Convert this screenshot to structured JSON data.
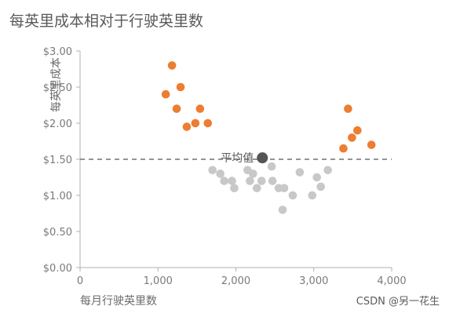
{
  "chart_data": {
    "type": "scatter",
    "title": "每英里成本相对于行驶英里数",
    "xlabel": "每月行驶英里数",
    "ylabel": "每英里成本",
    "xlim": [
      0,
      4000
    ],
    "ylim": [
      0,
      3
    ],
    "xticks": [
      0,
      1000,
      2000,
      3000,
      4000
    ],
    "xtick_labels": [
      "0",
      "1,000",
      "2,000",
      "3,000",
      "4,000"
    ],
    "yticks": [
      0,
      0.5,
      1,
      1.5,
      2,
      2.5,
      3
    ],
    "ytick_labels": [
      "$0.00",
      "$0.50",
      "$1.00",
      "$1.50",
      "$2.00",
      "$2.50",
      "$3.00"
    ],
    "grid": false,
    "average": {
      "x": 2340,
      "y": 1.52,
      "label": "平均值",
      "line_y": 1.5,
      "color": "#555555"
    },
    "series": [
      {
        "color": "#ed7d31",
        "points": [
          [
            1100,
            2.4
          ],
          [
            1180,
            2.8
          ],
          [
            1240,
            2.2
          ],
          [
            1290,
            2.5
          ],
          [
            1370,
            1.95
          ],
          [
            1480,
            2.0
          ],
          [
            1540,
            2.2
          ],
          [
            1640,
            2.0
          ],
          [
            3380,
            1.65
          ],
          [
            3440,
            2.2
          ],
          [
            3490,
            1.8
          ],
          [
            3560,
            1.9
          ],
          [
            3740,
            1.7
          ]
        ]
      },
      {
        "color": "#c8c8c8",
        "points": [
          [
            1700,
            1.35
          ],
          [
            1800,
            1.3
          ],
          [
            1850,
            1.2
          ],
          [
            1950,
            1.2
          ],
          [
            1980,
            1.1
          ],
          [
            2150,
            1.35
          ],
          [
            2180,
            1.2
          ],
          [
            2220,
            1.3
          ],
          [
            2270,
            1.1
          ],
          [
            2330,
            1.2
          ],
          [
            2460,
            1.4
          ],
          [
            2470,
            1.2
          ],
          [
            2550,
            1.1
          ],
          [
            2600,
            0.8
          ],
          [
            2620,
            1.1
          ],
          [
            2730,
            1.0
          ],
          [
            2820,
            1.32
          ],
          [
            2980,
            1.0
          ],
          [
            3040,
            1.25
          ],
          [
            3090,
            1.12
          ],
          [
            3180,
            1.35
          ]
        ]
      }
    ]
  },
  "watermark": "CSDN @另一花生"
}
